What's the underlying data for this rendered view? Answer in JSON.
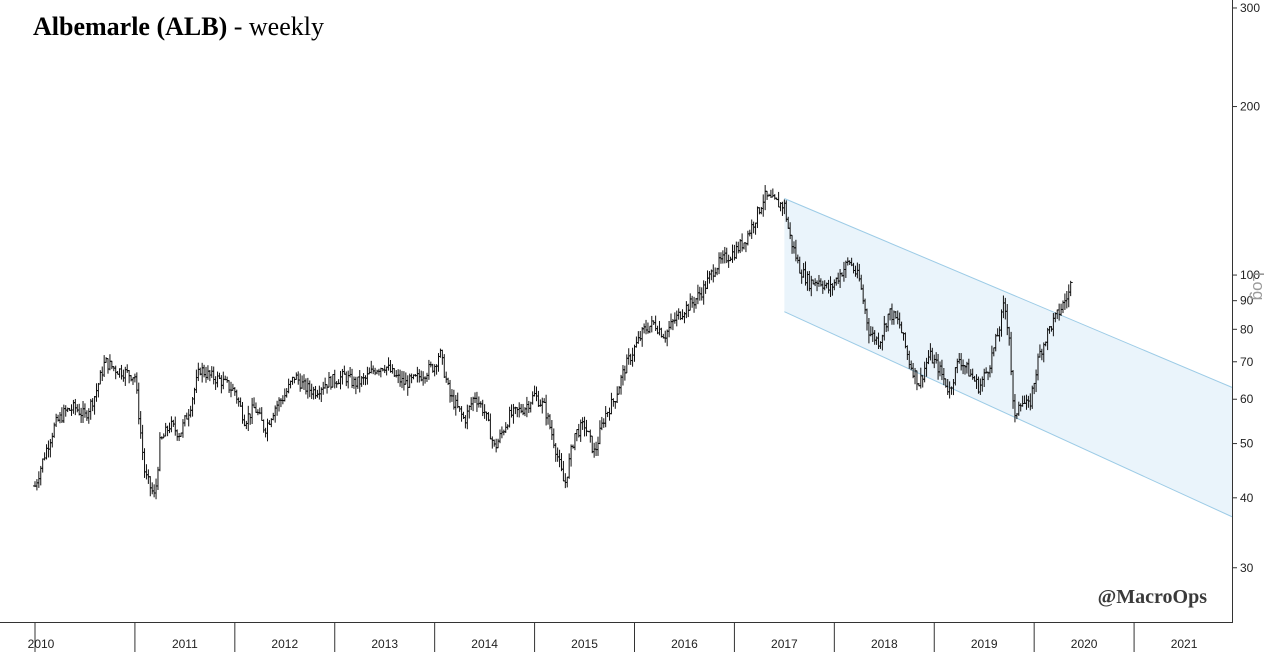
{
  "title": {
    "main": "Albemarle (ALB)",
    "suffix": " - weekly"
  },
  "watermark": "@MacroOps",
  "side_label": "Log",
  "colors": {
    "bars": "#111111",
    "channel_fill": "#eaf4fb",
    "channel_line": "#9ccbe6",
    "axis": "#333333"
  },
  "chart_data": {
    "type": "ohlc-bar",
    "title": "Albemarle (ALB) - weekly",
    "y_scale": "log",
    "ylim": [
      24,
      310
    ],
    "xlim": [
      2009.95,
      2021.98
    ],
    "y_ticks": [
      30,
      40,
      50,
      60,
      70,
      80,
      90,
      100,
      200,
      300
    ],
    "x_tick_labels": [
      "2010",
      "2011",
      "2012",
      "2013",
      "2014",
      "2015",
      "2016",
      "2017",
      "2018",
      "2019",
      "2020",
      "2021"
    ],
    "grid": false,
    "price_path": [
      [
        2010.0,
        42
      ],
      [
        2010.1,
        48
      ],
      [
        2010.2,
        54
      ],
      [
        2010.3,
        57
      ],
      [
        2010.4,
        58
      ],
      [
        2010.5,
        56
      ],
      [
        2010.6,
        61
      ],
      [
        2010.7,
        70
      ],
      [
        2010.8,
        68
      ],
      [
        2010.9,
        67
      ],
      [
        2011.0,
        66
      ],
      [
        2011.1,
        44
      ],
      [
        2011.2,
        40
      ],
      [
        2011.25,
        50
      ],
      [
        2011.35,
        54
      ],
      [
        2011.45,
        52
      ],
      [
        2011.55,
        58
      ],
      [
        2011.65,
        68
      ],
      [
        2011.75,
        66
      ],
      [
        2011.85,
        65
      ],
      [
        2012.0,
        62
      ],
      [
        2012.1,
        55
      ],
      [
        2012.2,
        58
      ],
      [
        2012.3,
        53
      ],
      [
        2012.4,
        58
      ],
      [
        2012.5,
        61
      ],
      [
        2012.6,
        66
      ],
      [
        2012.7,
        63
      ],
      [
        2012.8,
        62
      ],
      [
        2012.9,
        64
      ],
      [
        2013.0,
        65
      ],
      [
        2013.1,
        66
      ],
      [
        2013.2,
        64
      ],
      [
        2013.3,
        65
      ],
      [
        2013.4,
        68
      ],
      [
        2013.5,
        69
      ],
      [
        2013.6,
        66
      ],
      [
        2013.7,
        64
      ],
      [
        2013.8,
        65
      ],
      [
        2013.9,
        67
      ],
      [
        2014.0,
        69
      ],
      [
        2014.05,
        73
      ],
      [
        2014.15,
        61
      ],
      [
        2014.3,
        55
      ],
      [
        2014.4,
        61
      ],
      [
        2014.5,
        57
      ],
      [
        2014.6,
        49
      ],
      [
        2014.75,
        56
      ],
      [
        2014.9,
        58
      ],
      [
        2015.0,
        61
      ],
      [
        2015.1,
        58
      ],
      [
        2015.2,
        50
      ],
      [
        2015.3,
        42
      ],
      [
        2015.4,
        52
      ],
      [
        2015.5,
        54
      ],
      [
        2015.6,
        48
      ],
      [
        2015.7,
        56
      ],
      [
        2015.8,
        60
      ],
      [
        2015.9,
        68
      ],
      [
        2016.0,
        74
      ],
      [
        2016.1,
        80
      ],
      [
        2016.2,
        82
      ],
      [
        2016.3,
        78
      ],
      [
        2016.4,
        83
      ],
      [
        2016.5,
        87
      ],
      [
        2016.6,
        90
      ],
      [
        2016.7,
        95
      ],
      [
        2016.8,
        103
      ],
      [
        2016.9,
        107
      ],
      [
        2017.0,
        110
      ],
      [
        2017.1,
        115
      ],
      [
        2017.2,
        125
      ],
      [
        2017.3,
        138
      ],
      [
        2017.4,
        135
      ],
      [
        2017.5,
        133
      ],
      [
        2017.55,
        118
      ],
      [
        2017.65,
        103
      ],
      [
        2017.75,
        97
      ],
      [
        2017.85,
        98
      ],
      [
        2017.95,
        94
      ],
      [
        2018.05,
        100
      ],
      [
        2018.15,
        106
      ],
      [
        2018.25,
        98
      ],
      [
        2018.35,
        79
      ],
      [
        2018.45,
        76
      ],
      [
        2018.55,
        86
      ],
      [
        2018.65,
        82
      ],
      [
        2018.75,
        70
      ],
      [
        2018.85,
        64
      ],
      [
        2018.95,
        72
      ],
      [
        2019.05,
        68
      ],
      [
        2019.15,
        62
      ],
      [
        2019.25,
        71
      ],
      [
        2019.35,
        67
      ],
      [
        2019.45,
        63
      ],
      [
        2019.55,
        69
      ],
      [
        2019.65,
        80
      ],
      [
        2019.7,
        89
      ],
      [
        2019.75,
        78
      ],
      [
        2019.8,
        54
      ],
      [
        2019.85,
        60
      ],
      [
        2019.95,
        58
      ],
      [
        2020.05,
        72
      ],
      [
        2020.15,
        80
      ],
      [
        2020.25,
        86
      ],
      [
        2020.35,
        93
      ],
      [
        2020.38,
        99
      ]
    ],
    "channel": {
      "upper": [
        [
          2017.5,
          137
        ],
        [
          2021.98,
          63
        ]
      ],
      "lower": [
        [
          2017.5,
          86
        ],
        [
          2021.98,
          37
        ]
      ]
    }
  }
}
